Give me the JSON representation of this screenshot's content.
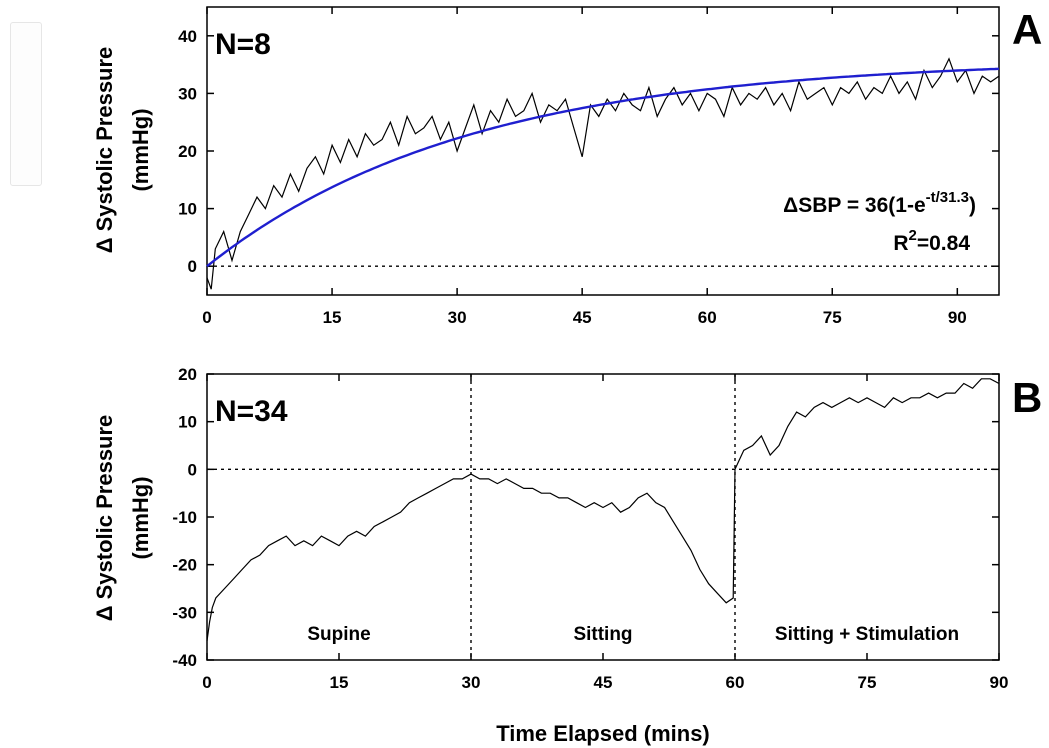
{
  "chart_data": [
    {
      "panel": "A",
      "type": "line",
      "n_label": "N=8",
      "ylabel_line1": "Δ Systolic Pressure",
      "ylabel_line2": "(mmHg)",
      "xlim": [
        0,
        95
      ],
      "ylim": [
        -5,
        45
      ],
      "xticks": [
        0,
        15,
        30,
        45,
        60,
        75,
        90
      ],
      "yticks": [
        0,
        10,
        20,
        30,
        40
      ],
      "reference_line_y": 0,
      "equation": {
        "lhs": "ΔSBP = 36(1-e",
        "exponent": "-t/31.3",
        "rhs": ")",
        "r2_base": "R",
        "r2_exp": "2",
        "r2_value": "=0.84"
      },
      "series": [
        {
          "role": "measured",
          "color": "#000000",
          "x": [
            0,
            0.5,
            1,
            2,
            3,
            4,
            5,
            6,
            7,
            8,
            9,
            10,
            11,
            12,
            13,
            14,
            15,
            16,
            17,
            18,
            19,
            20,
            21,
            22,
            23,
            24,
            25,
            26,
            27,
            28,
            29,
            30,
            31,
            32,
            33,
            34,
            35,
            36,
            37,
            38,
            39,
            40,
            41,
            42,
            43,
            44,
            45,
            46,
            47,
            48,
            49,
            50,
            51,
            52,
            53,
            54,
            55,
            56,
            57,
            58,
            59,
            60,
            61,
            62,
            63,
            64,
            65,
            66,
            67,
            68,
            69,
            70,
            71,
            72,
            73,
            74,
            75,
            76,
            77,
            78,
            79,
            80,
            81,
            82,
            83,
            84,
            85,
            86,
            87,
            88,
            89,
            90,
            91,
            92,
            93,
            94,
            95
          ],
          "y": [
            -2,
            -4,
            3,
            6,
            1,
            6,
            9,
            12,
            10,
            14,
            12,
            16,
            13,
            17,
            19,
            16,
            21,
            18,
            22,
            19,
            23,
            21,
            22,
            25,
            21,
            26,
            23,
            24,
            26,
            22,
            25,
            20,
            24,
            28,
            23,
            27,
            25,
            29,
            26,
            27,
            30,
            25,
            28,
            27,
            29,
            24,
            19,
            28,
            26,
            29,
            27,
            30,
            28,
            27,
            31,
            26,
            29,
            31,
            28,
            30,
            27,
            30,
            29,
            26,
            31,
            28,
            30,
            29,
            31,
            28,
            30,
            27,
            32,
            29,
            30,
            31,
            28,
            31,
            30,
            32,
            29,
            31,
            30,
            33,
            30,
            32,
            29,
            34,
            31,
            33,
            36,
            32,
            34,
            30,
            33,
            32,
            33
          ]
        },
        {
          "role": "fit",
          "color": "#1f1fcf",
          "amplitude": 36,
          "tau": 31.3
        }
      ]
    },
    {
      "panel": "B",
      "type": "line",
      "n_label": "N=34",
      "ylabel_line1": "Δ Systolic Pressure",
      "ylabel_line2": "(mmHg)",
      "xlabel": "Time Elapsed (mins)",
      "xlim": [
        0,
        90
      ],
      "ylim": [
        -40,
        20
      ],
      "xticks": [
        0,
        15,
        30,
        45,
        60,
        75,
        90
      ],
      "yticks": [
        -40,
        -30,
        -20,
        -10,
        0,
        10,
        20
      ],
      "reference_line_y": 0,
      "phase_boundaries": [
        30,
        60
      ],
      "phases": [
        {
          "label": "Supine",
          "x_center": 15
        },
        {
          "label": "Sitting",
          "x_center": 45
        },
        {
          "label": "Sitting + Stimulation",
          "x_center": 75
        }
      ],
      "series": [
        {
          "role": "measured",
          "color": "#000000",
          "x": [
            0,
            0.3,
            0.6,
            1,
            2,
            3,
            4,
            5,
            6,
            7,
            8,
            9,
            10,
            11,
            12,
            13,
            14,
            15,
            16,
            17,
            18,
            19,
            20,
            21,
            22,
            23,
            24,
            25,
            26,
            27,
            28,
            29,
            30,
            31,
            32,
            33,
            34,
            35,
            36,
            37,
            38,
            39,
            40,
            41,
            42,
            43,
            44,
            45,
            46,
            47,
            48,
            49,
            50,
            51,
            52,
            53,
            54,
            55,
            56,
            57,
            58,
            59,
            59.8,
            60,
            60.5,
            61,
            62,
            63,
            64,
            65,
            66,
            67,
            68,
            69,
            70,
            71,
            72,
            73,
            74,
            75,
            76,
            77,
            78,
            79,
            80,
            81,
            82,
            83,
            84,
            85,
            86,
            87,
            88,
            89,
            90
          ],
          "y": [
            -36,
            -32,
            -29,
            -27,
            -25,
            -23,
            -21,
            -19,
            -18,
            -16,
            -15,
            -14,
            -16,
            -15,
            -16,
            -14,
            -15,
            -16,
            -14,
            -13,
            -14,
            -12,
            -11,
            -10,
            -9,
            -7,
            -6,
            -5,
            -4,
            -3,
            -2,
            -2,
            -1,
            -2,
            -2,
            -3,
            -2,
            -3,
            -4,
            -4,
            -5,
            -5,
            -6,
            -6,
            -7,
            -8,
            -7,
            -8,
            -7,
            -9,
            -8,
            -6,
            -5,
            -7,
            -8,
            -11,
            -14,
            -17,
            -21,
            -24,
            -26,
            -28,
            -27,
            0,
            2,
            4,
            5,
            7,
            3,
            5,
            9,
            12,
            11,
            13,
            14,
            13,
            14,
            15,
            14,
            15,
            14,
            13,
            15,
            14,
            15,
            15,
            16,
            15,
            16,
            16,
            18,
            17,
            19,
            19,
            18
          ]
        }
      ]
    }
  ]
}
